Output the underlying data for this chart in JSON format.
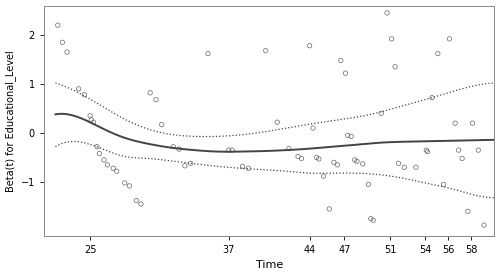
{
  "title": "",
  "xlabel": "Time",
  "ylabel": "Beta(t) for Educational_Level",
  "xlim": [
    21,
    60
  ],
  "ylim": [
    -2.1,
    2.6
  ],
  "yticks": [
    -1,
    0,
    1,
    2
  ],
  "xticks": [
    25,
    37,
    44,
    47,
    51,
    54,
    56,
    58
  ],
  "scatter_points": [
    [
      22.2,
      2.2
    ],
    [
      22.6,
      1.85
    ],
    [
      23.0,
      1.65
    ],
    [
      24.0,
      0.9
    ],
    [
      24.5,
      0.78
    ],
    [
      25.0,
      0.35
    ],
    [
      25.1,
      0.27
    ],
    [
      25.3,
      0.22
    ],
    [
      25.6,
      -0.28
    ],
    [
      25.8,
      -0.42
    ],
    [
      26.2,
      -0.55
    ],
    [
      26.5,
      -0.65
    ],
    [
      27.0,
      -0.72
    ],
    [
      27.3,
      -0.78
    ],
    [
      28.0,
      -1.02
    ],
    [
      28.4,
      -1.08
    ],
    [
      29.0,
      -1.38
    ],
    [
      29.4,
      -1.45
    ],
    [
      30.2,
      0.82
    ],
    [
      30.7,
      0.68
    ],
    [
      31.2,
      0.17
    ],
    [
      32.2,
      -0.28
    ],
    [
      32.7,
      -0.33
    ],
    [
      33.2,
      -0.67
    ],
    [
      33.7,
      -0.62
    ],
    [
      35.2,
      1.62
    ],
    [
      37.0,
      -0.35
    ],
    [
      37.3,
      -0.35
    ],
    [
      38.2,
      -0.68
    ],
    [
      38.7,
      -0.72
    ],
    [
      40.2,
      1.68
    ],
    [
      41.2,
      0.22
    ],
    [
      42.2,
      -0.32
    ],
    [
      43.0,
      -0.48
    ],
    [
      43.3,
      -0.52
    ],
    [
      44.0,
      1.78
    ],
    [
      44.3,
      0.1
    ],
    [
      44.6,
      -0.5
    ],
    [
      44.8,
      -0.53
    ],
    [
      45.2,
      -0.88
    ],
    [
      45.7,
      -1.55
    ],
    [
      46.1,
      -0.6
    ],
    [
      46.4,
      -0.65
    ],
    [
      46.7,
      1.48
    ],
    [
      47.1,
      1.22
    ],
    [
      47.3,
      -0.05
    ],
    [
      47.6,
      -0.07
    ],
    [
      47.9,
      -0.55
    ],
    [
      48.1,
      -0.58
    ],
    [
      48.6,
      -0.63
    ],
    [
      49.1,
      -1.05
    ],
    [
      49.3,
      -1.75
    ],
    [
      49.5,
      -1.78
    ],
    [
      50.2,
      0.4
    ],
    [
      50.7,
      2.45
    ],
    [
      51.1,
      1.92
    ],
    [
      51.4,
      1.35
    ],
    [
      51.7,
      -0.62
    ],
    [
      52.2,
      -0.7
    ],
    [
      53.2,
      -0.7
    ],
    [
      54.1,
      -0.35
    ],
    [
      54.2,
      -0.38
    ],
    [
      54.6,
      0.72
    ],
    [
      55.1,
      1.62
    ],
    [
      55.6,
      -1.05
    ],
    [
      56.1,
      1.92
    ],
    [
      56.6,
      0.2
    ],
    [
      56.9,
      -0.35
    ],
    [
      57.2,
      -0.52
    ],
    [
      57.7,
      -1.6
    ],
    [
      58.1,
      0.2
    ],
    [
      58.6,
      -0.35
    ],
    [
      59.1,
      -1.88
    ]
  ],
  "smooth_x": [
    22.0,
    24,
    26,
    28,
    30,
    32,
    34,
    36,
    38,
    40,
    42,
    44,
    46,
    48,
    50,
    52,
    54,
    56,
    58,
    60
  ],
  "smooth_y": [
    0.38,
    0.32,
    0.1,
    -0.1,
    -0.22,
    -0.3,
    -0.35,
    -0.38,
    -0.38,
    -0.37,
    -0.35,
    -0.32,
    -0.28,
    -0.24,
    -0.2,
    -0.18,
    -0.17,
    -0.16,
    -0.15,
    -0.14
  ],
  "upper_ci_y": [
    1.02,
    0.82,
    0.55,
    0.28,
    0.08,
    -0.03,
    -0.07,
    -0.07,
    -0.04,
    0.02,
    0.1,
    0.18,
    0.25,
    0.32,
    0.42,
    0.55,
    0.68,
    0.82,
    0.95,
    1.02
  ],
  "lower_ci_y": [
    -0.28,
    -0.18,
    -0.32,
    -0.48,
    -0.52,
    -0.57,
    -0.63,
    -0.68,
    -0.72,
    -0.75,
    -0.78,
    -0.82,
    -0.82,
    -0.82,
    -0.85,
    -0.92,
    -1.02,
    -1.12,
    -1.25,
    -1.32
  ],
  "line_color": "#444444",
  "ci_color": "#444444",
  "scatter_facecolor": "none",
  "scatter_edge_color": "#666666",
  "background_color": "#ffffff",
  "spine_color": "#888888"
}
